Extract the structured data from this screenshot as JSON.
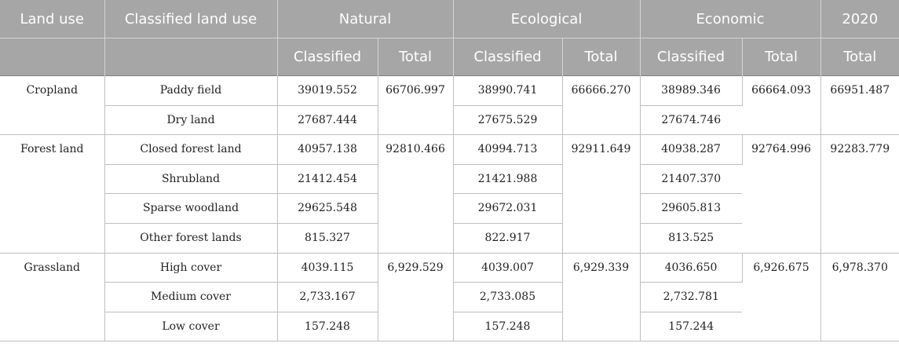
{
  "headers": {
    "land_use": "Land use",
    "classified_land_use": "Classified land use",
    "natural": "Natural",
    "ecological": "Ecological",
    "economic": "Economic",
    "year": "2020",
    "classified": "Classified",
    "total": "Total"
  },
  "groups": [
    {
      "name": "Cropland",
      "natural_total": "66706.997",
      "ecological_total": "66666.270",
      "economic_total": "66664.093",
      "y2020_total": "66951.487",
      "rows": [
        {
          "sub": "Paddy field",
          "natural": "39019.552",
          "ecological": "38990.741",
          "economic": "38989.346"
        },
        {
          "sub": "Dry land",
          "natural": "27687.444",
          "ecological": "27675.529",
          "economic": "27674.746"
        }
      ]
    },
    {
      "name": "Forest land",
      "natural_total": "92810.466",
      "ecological_total": "92911.649",
      "economic_total": "92764.996",
      "y2020_total": "92283.779",
      "rows": [
        {
          "sub": "Closed forest land",
          "natural": "40957.138",
          "ecological": "40994.713",
          "economic": "40938.287"
        },
        {
          "sub": "Shrubland",
          "natural": "21412.454",
          "ecological": "21421.988",
          "economic": "21407.370"
        },
        {
          "sub": "Sparse woodland",
          "natural": "29625.548",
          "ecological": "29672.031",
          "economic": "29605.813"
        },
        {
          "sub": "Other forest lands",
          "natural": "815.327",
          "ecological": "822.917",
          "economic": "813.525"
        }
      ]
    },
    {
      "name": "Grassland",
      "natural_total": "6,929.529",
      "ecological_total": "6,929.339",
      "economic_total": "6,926.675",
      "y2020_total": "6,978.370",
      "rows": [
        {
          "sub": "High cover",
          "natural": "4039.115",
          "ecological": "4039.007",
          "economic": "4036.650"
        },
        {
          "sub": "Medium cover",
          "natural": "2,733.167",
          "ecological": "2,733.085",
          "economic": "2,732.781"
        },
        {
          "sub": "Low cover",
          "natural": "157.248",
          "ecological": "157.248",
          "economic": "157.244"
        }
      ]
    }
  ]
}
